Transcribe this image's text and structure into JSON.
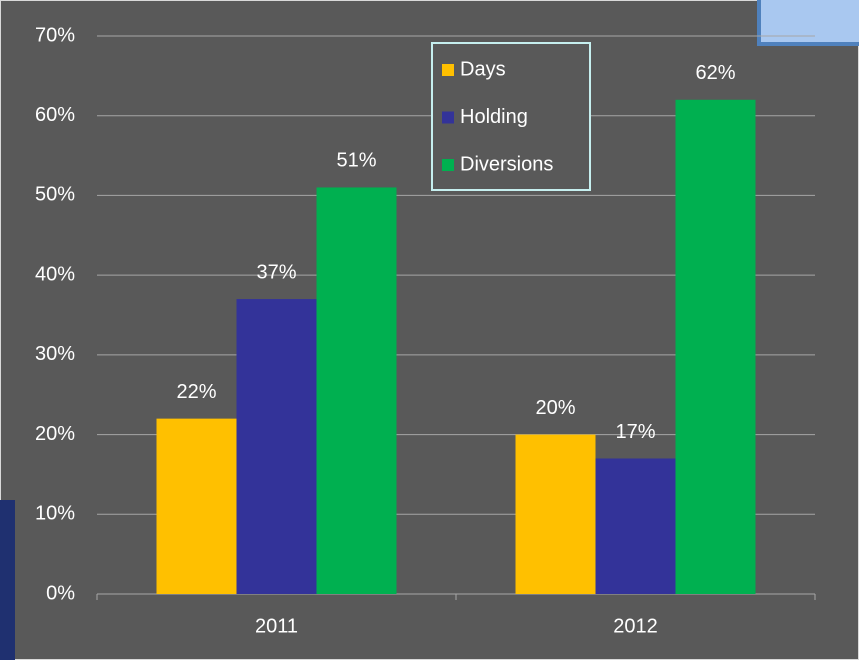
{
  "chart_data": {
    "type": "bar",
    "categories": [
      "2011",
      "2012"
    ],
    "series": [
      {
        "name": "Days",
        "color": "#ffc000",
        "values": [
          22,
          20
        ],
        "value_labels": [
          "22%",
          "20%"
        ]
      },
      {
        "name": "Holding",
        "color": "#333399",
        "values": [
          37,
          17
        ],
        "value_labels": [
          "37%",
          "17%"
        ]
      },
      {
        "name": "Diversions",
        "color": "#00b050",
        "values": [
          51,
          62
        ],
        "value_labels": [
          "51%",
          "62%"
        ]
      }
    ],
    "ylim": [
      0,
      70
    ],
    "yticks": [
      {
        "value": 0,
        "label": "0%"
      },
      {
        "value": 10,
        "label": "10%"
      },
      {
        "value": 20,
        "label": "20%"
      },
      {
        "value": 30,
        "label": "30%"
      },
      {
        "value": 40,
        "label": "40%"
      },
      {
        "value": 50,
        "label": "50%"
      },
      {
        "value": 60,
        "label": "60%"
      },
      {
        "value": 70,
        "label": "70%"
      }
    ],
    "grid": true,
    "legend": "top"
  }
}
